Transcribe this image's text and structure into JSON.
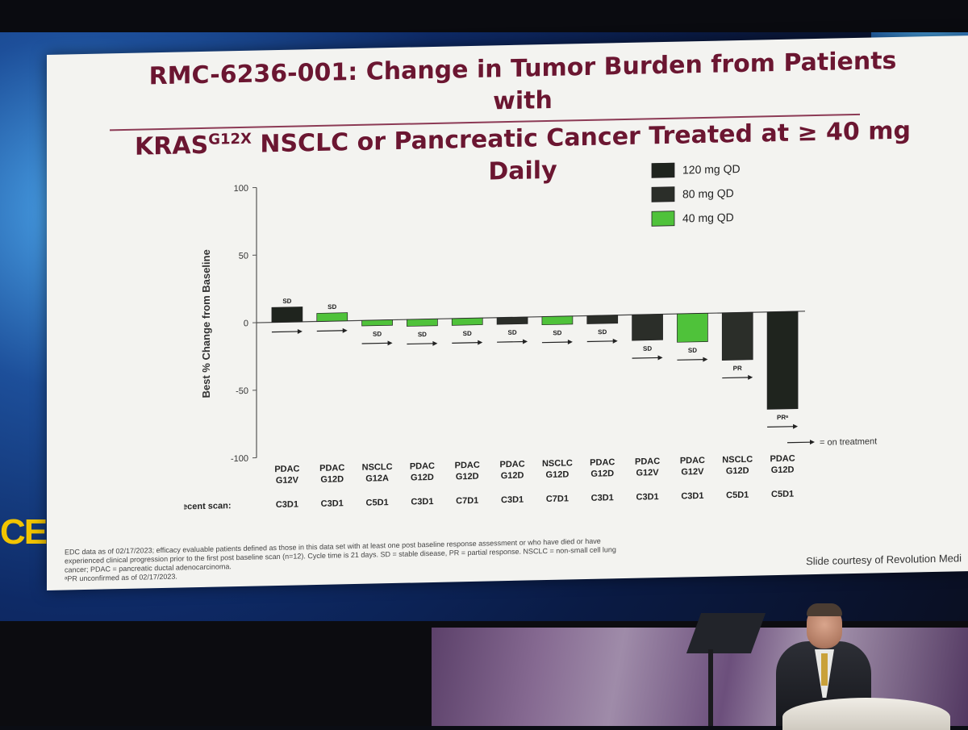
{
  "slide": {
    "title_line1": "RMC-6236-001: Change in Tumor Burden from Patients with",
    "title_line2_pre": "KRAS",
    "title_line2_sup": "G12X",
    "title_line2_post": " NSCLC or Pancreatic Cancer Treated at ≥ 40 mg Daily",
    "footnote_lines": [
      "EDC data as of 02/17/2023; efficacy evaluable patients defined as those in this data set with at least one post baseline response assessment or who have died or have",
      "experienced clinical progression prior to the first post baseline scan (n=12). Cycle time is 21 days. SD = stable disease, PR = partial response. NSCLC = non-small cell lung",
      "cancer; PDAC = pancreatic ductal adenocarcinoma.",
      "ᵃPR unconfirmed as of 02/17/2023."
    ],
    "courtesy": "Slide courtesy of Revolution Medi",
    "left_edge_text": "CE"
  },
  "chart_data": {
    "type": "bar",
    "ylabel": "Best % Change from Baseline",
    "ylim": [
      -100,
      100
    ],
    "yticks": [
      100,
      50,
      0,
      -50,
      -100
    ],
    "scan_row_label": "Most recent scan:",
    "on_treatment_label": "= on treatment",
    "legend": [
      {
        "label": "120 mg QD",
        "color": "#1f241e"
      },
      {
        "label": "80 mg QD",
        "color": "#2b2e29"
      },
      {
        "label": "40 mg QD",
        "color": "#4fc23a"
      }
    ],
    "bars": [
      {
        "tumor": "PDAC",
        "mutation": "G12V",
        "value": 11,
        "dose": "120 mg QD",
        "response": "SD",
        "scan": "C3D1",
        "on_treatment": true
      },
      {
        "tumor": "PDAC",
        "mutation": "G12D",
        "value": 6,
        "dose": "40 mg QD",
        "response": "SD",
        "scan": "C3D1",
        "on_treatment": true
      },
      {
        "tumor": "NSCLC",
        "mutation": "G12A",
        "value": -4,
        "dose": "40 mg QD",
        "response": "SD",
        "scan": "C5D1",
        "on_treatment": true
      },
      {
        "tumor": "PDAC",
        "mutation": "G12D",
        "value": -5,
        "dose": "40 mg QD",
        "response": "SD",
        "scan": "C3D1",
        "on_treatment": true
      },
      {
        "tumor": "PDAC",
        "mutation": "G12D",
        "value": -5,
        "dose": "40 mg QD",
        "response": "SD",
        "scan": "C7D1",
        "on_treatment": true
      },
      {
        "tumor": "PDAC",
        "mutation": "G12D",
        "value": -5,
        "dose": "80 mg QD",
        "response": "SD",
        "scan": "C3D1",
        "on_treatment": true
      },
      {
        "tumor": "NSCLC",
        "mutation": "G12D",
        "value": -6,
        "dose": "40 mg QD",
        "response": "SD",
        "scan": "C7D1",
        "on_treatment": true
      },
      {
        "tumor": "PDAC",
        "mutation": "G12D",
        "value": -6,
        "dose": "80 mg QD",
        "response": "SD",
        "scan": "C3D1",
        "on_treatment": true
      },
      {
        "tumor": "PDAC",
        "mutation": "G12V",
        "value": -19,
        "dose": "80 mg QD",
        "response": "SD",
        "scan": "C3D1",
        "on_treatment": true
      },
      {
        "tumor": "PDAC",
        "mutation": "G12V",
        "value": -21,
        "dose": "40 mg QD",
        "response": "SD",
        "scan": "C3D1",
        "on_treatment": true
      },
      {
        "tumor": "NSCLC",
        "mutation": "G12D",
        "value": -35,
        "dose": "80 mg QD",
        "response": "PR",
        "scan": "C5D1",
        "on_treatment": true
      },
      {
        "tumor": "PDAC",
        "mutation": "G12D",
        "value": -72,
        "dose": "120 mg QD",
        "response": "PRᵃ",
        "scan": "C5D1",
        "on_treatment": true
      }
    ]
  }
}
